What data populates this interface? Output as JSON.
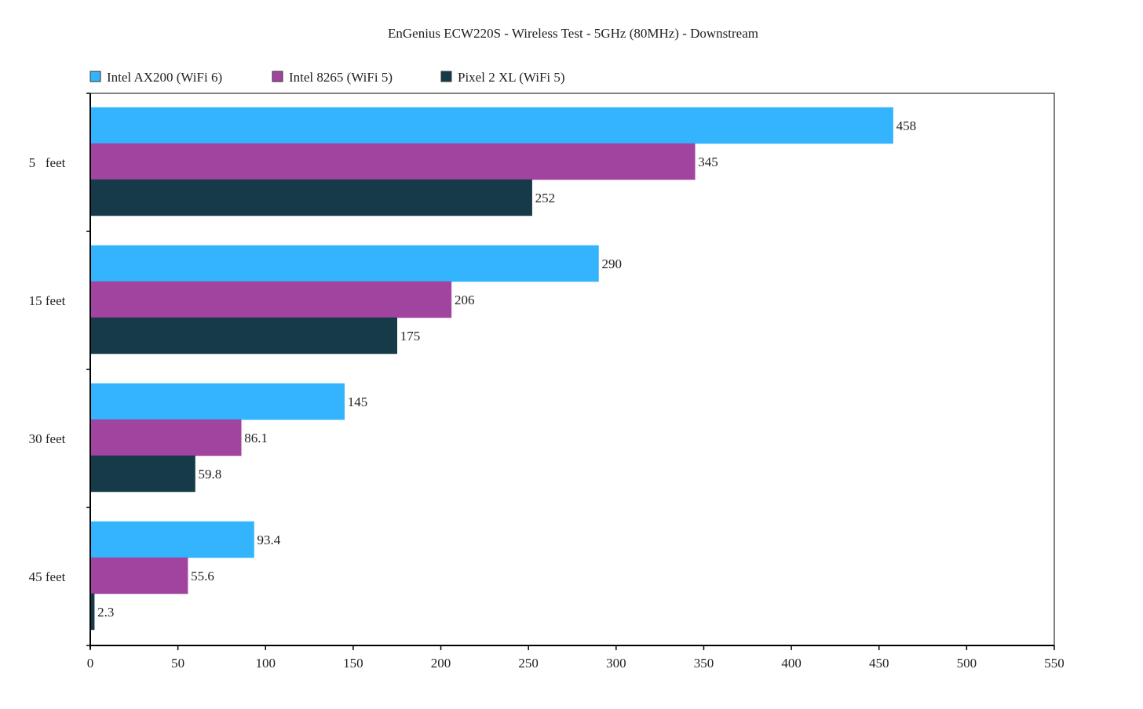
{
  "chart_data": {
    "type": "bar",
    "orientation": "horizontal",
    "title": "EnGenius ECW220S - Wireless Test - 5GHz (80MHz) - Downstream",
    "xlabel": "",
    "ylabel": "",
    "categories": [
      "5   feet",
      "15 feet",
      "30 feet",
      "45 feet"
    ],
    "series": [
      {
        "name": "Intel AX200 (WiFi 6)",
        "color": "#33b4fc",
        "values": [
          458,
          290,
          145,
          93.4
        ]
      },
      {
        "name": "Intel 8265 (WiFi 5)",
        "color": "#a044a0",
        "values": [
          345,
          206,
          86.1,
          55.6
        ]
      },
      {
        "name": "Pixel 2 XL (WiFi 5)",
        "color": "#173a48",
        "values": [
          252,
          175,
          59.8,
          2.3
        ]
      }
    ],
    "value_labels": [
      [
        "458",
        "345",
        "252"
      ],
      [
        "290",
        "206",
        "175"
      ],
      [
        "145",
        "86.1",
        "59.8"
      ],
      [
        "93.4",
        "55.6",
        "2.3"
      ]
    ],
    "xlim": [
      0,
      550
    ],
    "xticks": [
      0,
      50,
      100,
      150,
      200,
      250,
      300,
      350,
      400,
      450,
      500,
      550
    ],
    "xtick_labels": [
      "0",
      "50",
      "100",
      "150",
      "200",
      "250",
      "300",
      "350",
      "400",
      "450",
      "500",
      "550"
    ],
    "grid": false,
    "legend_position": "top-left"
  }
}
